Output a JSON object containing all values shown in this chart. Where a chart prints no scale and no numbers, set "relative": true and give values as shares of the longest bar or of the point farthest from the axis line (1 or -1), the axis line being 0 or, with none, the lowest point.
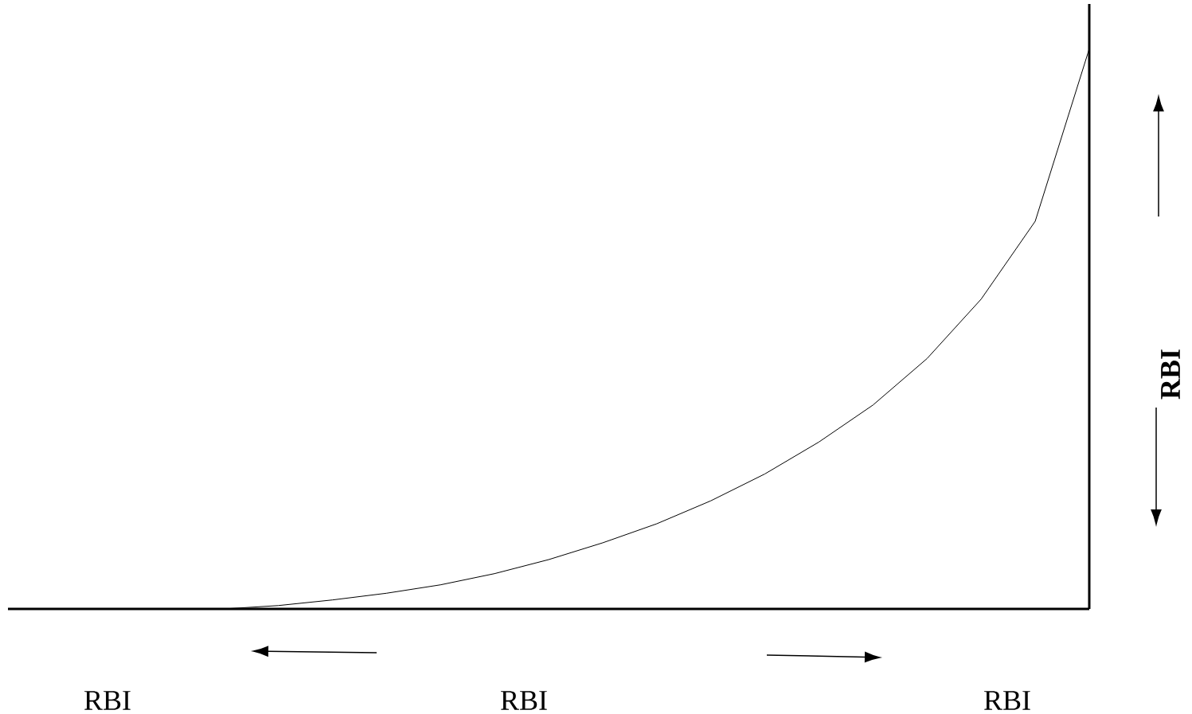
{
  "chart_data": {
    "type": "line",
    "relative": true,
    "xlabel": "RBI",
    "ylabel": "RBI",
    "annotations": [
      "RBI",
      "RBI"
    ],
    "categories": [
      null,
      null,
      null,
      null,
      null,
      null,
      null,
      null,
      null,
      null,
      null,
      null,
      null,
      null,
      null,
      null,
      null,
      null,
      null,
      null,
      null
    ],
    "series": [
      {
        "color": "#000000",
        "values": [
          0,
          0,
          0,
          0,
          0,
          0.006,
          0.016,
          0.028,
          0.043,
          0.063,
          0.088,
          0.118,
          0.152,
          0.193,
          0.241,
          0.298,
          0.364,
          0.447,
          0.553,
          0.692,
          1
        ]
      }
    ]
  }
}
